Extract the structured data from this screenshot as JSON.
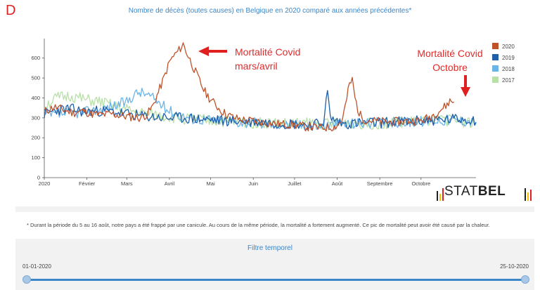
{
  "panel_letter": "D",
  "chart_data": {
    "type": "line",
    "title": "Nombre de décès (toutes causes) en Belgique en 2020 comparé aux années précédentes*",
    "xlabel": "",
    "ylabel": "",
    "ylim": [
      0,
      680
    ],
    "yticks": [
      0,
      100,
      200,
      300,
      400,
      500,
      600
    ],
    "x_start": "2020-01-01",
    "x_end": "2020-12-31",
    "x_tick_labels": [
      {
        "label": "2020",
        "date": "2020-01-01"
      },
      {
        "label": "Février",
        "date": "2020-02-01"
      },
      {
        "label": "Mars",
        "date": "2020-03-01"
      },
      {
        "label": "Avril",
        "date": "2020-04-01"
      },
      {
        "label": "Mai",
        "date": "2020-05-01"
      },
      {
        "label": "Juin",
        "date": "2020-06-01"
      },
      {
        "label": "Juillet",
        "date": "2020-07-01"
      },
      {
        "label": "Août",
        "date": "2020-08-01"
      },
      {
        "label": "Septembre",
        "date": "2020-09-01"
      },
      {
        "label": "Octobre",
        "date": "2020-10-01"
      }
    ],
    "grid": false,
    "legend_position": "right",
    "series": [
      {
        "name": "2020",
        "color": "#c0522a",
        "points": [
          [
            "2020-01-01",
            330
          ],
          [
            "2020-01-08",
            355
          ],
          [
            "2020-01-15",
            340
          ],
          [
            "2020-01-22",
            325
          ],
          [
            "2020-01-29",
            335
          ],
          [
            "2020-02-05",
            320
          ],
          [
            "2020-02-12",
            315
          ],
          [
            "2020-02-19",
            320
          ],
          [
            "2020-02-26",
            310
          ],
          [
            "2020-03-04",
            305
          ],
          [
            "2020-03-11",
            300
          ],
          [
            "2020-03-16",
            320
          ],
          [
            "2020-03-20",
            360
          ],
          [
            "2020-03-24",
            430
          ],
          [
            "2020-03-28",
            500
          ],
          [
            "2020-04-01",
            580
          ],
          [
            "2020-04-04",
            610
          ],
          [
            "2020-04-08",
            640
          ],
          [
            "2020-04-11",
            670
          ],
          [
            "2020-04-14",
            620
          ],
          [
            "2020-04-18",
            560
          ],
          [
            "2020-04-22",
            500
          ],
          [
            "2020-04-26",
            440
          ],
          [
            "2020-04-30",
            400
          ],
          [
            "2020-05-04",
            370
          ],
          [
            "2020-05-08",
            340
          ],
          [
            "2020-05-12",
            320
          ],
          [
            "2020-05-18",
            300
          ],
          [
            "2020-05-25",
            290
          ],
          [
            "2020-06-01",
            285
          ],
          [
            "2020-06-10",
            275
          ],
          [
            "2020-06-20",
            270
          ],
          [
            "2020-06-30",
            265
          ],
          [
            "2020-07-10",
            255
          ],
          [
            "2020-07-20",
            250
          ],
          [
            "2020-07-30",
            255
          ],
          [
            "2020-08-04",
            280
          ],
          [
            "2020-08-07",
            360
          ],
          [
            "2020-08-10",
            470
          ],
          [
            "2020-08-12",
            490
          ],
          [
            "2020-08-14",
            400
          ],
          [
            "2020-08-17",
            320
          ],
          [
            "2020-08-21",
            290
          ],
          [
            "2020-08-28",
            285
          ],
          [
            "2020-09-05",
            280
          ],
          [
            "2020-09-15",
            280
          ],
          [
            "2020-09-25",
            285
          ],
          [
            "2020-10-01",
            285
          ],
          [
            "2020-10-06",
            300
          ],
          [
            "2020-10-11",
            320
          ],
          [
            "2020-10-15",
            340
          ],
          [
            "2020-10-19",
            360
          ],
          [
            "2020-10-22",
            385
          ],
          [
            "2020-10-25",
            380
          ]
        ]
      },
      {
        "name": "2019",
        "color": "#1f5fa8",
        "points": [
          [
            "2020-01-01",
            320
          ],
          [
            "2020-01-10",
            340
          ],
          [
            "2020-01-20",
            345
          ],
          [
            "2020-01-31",
            330
          ],
          [
            "2020-02-10",
            335
          ],
          [
            "2020-02-20",
            330
          ],
          [
            "2020-03-01",
            320
          ],
          [
            "2020-03-10",
            310
          ],
          [
            "2020-03-20",
            305
          ],
          [
            "2020-03-31",
            300
          ],
          [
            "2020-04-10",
            300
          ],
          [
            "2020-04-20",
            295
          ],
          [
            "2020-05-01",
            290
          ],
          [
            "2020-05-15",
            285
          ],
          [
            "2020-06-01",
            280
          ],
          [
            "2020-06-15",
            275
          ],
          [
            "2020-07-01",
            270
          ],
          [
            "2020-07-15",
            265
          ],
          [
            "2020-07-22",
            280
          ],
          [
            "2020-07-25",
            430
          ],
          [
            "2020-07-27",
            300
          ],
          [
            "2020-08-05",
            270
          ],
          [
            "2020-08-20",
            275
          ],
          [
            "2020-09-01",
            275
          ],
          [
            "2020-09-15",
            280
          ],
          [
            "2020-10-01",
            285
          ],
          [
            "2020-10-15",
            290
          ],
          [
            "2020-10-31",
            295
          ],
          [
            "2020-11-10",
            290
          ]
        ]
      },
      {
        "name": "2018",
        "color": "#6ab4e8",
        "points": [
          [
            "2020-01-01",
            310
          ],
          [
            "2020-01-15",
            320
          ],
          [
            "2020-01-31",
            330
          ],
          [
            "2020-02-10",
            340
          ],
          [
            "2020-02-20",
            360
          ],
          [
            "2020-03-01",
            380
          ],
          [
            "2020-03-05",
            410
          ],
          [
            "2020-03-10",
            430
          ],
          [
            "2020-03-15",
            420
          ],
          [
            "2020-03-22",
            390
          ],
          [
            "2020-03-31",
            340
          ],
          [
            "2020-04-10",
            310
          ],
          [
            "2020-04-20",
            295
          ],
          [
            "2020-05-01",
            290
          ],
          [
            "2020-05-20",
            280
          ],
          [
            "2020-06-10",
            270
          ],
          [
            "2020-07-01",
            265
          ],
          [
            "2020-07-20",
            260
          ],
          [
            "2020-08-05",
            270
          ],
          [
            "2020-08-20",
            275
          ],
          [
            "2020-09-05",
            275
          ],
          [
            "2020-09-20",
            280
          ],
          [
            "2020-10-05",
            285
          ],
          [
            "2020-10-20",
            290
          ],
          [
            "2020-11-05",
            285
          ],
          [
            "2020-11-10",
            280
          ]
        ]
      },
      {
        "name": "2017",
        "color": "#b8e0a8",
        "points": [
          [
            "2020-01-01",
            360
          ],
          [
            "2020-01-10",
            400
          ],
          [
            "2020-01-20",
            410
          ],
          [
            "2020-01-31",
            390
          ],
          [
            "2020-02-10",
            380
          ],
          [
            "2020-02-20",
            360
          ],
          [
            "2020-03-01",
            340
          ],
          [
            "2020-03-15",
            320
          ],
          [
            "2020-03-31",
            305
          ],
          [
            "2020-04-15",
            295
          ],
          [
            "2020-05-01",
            285
          ],
          [
            "2020-05-20",
            280
          ],
          [
            "2020-06-10",
            275
          ],
          [
            "2020-06-25",
            270
          ],
          [
            "2020-07-10",
            275
          ],
          [
            "2020-07-25",
            270
          ],
          [
            "2020-08-10",
            275
          ],
          [
            "2020-08-25",
            270
          ],
          [
            "2020-09-10",
            275
          ],
          [
            "2020-09-25",
            280
          ],
          [
            "2020-10-10",
            285
          ],
          [
            "2020-10-25",
            290
          ],
          [
            "2020-11-10",
            275
          ]
        ]
      }
    ],
    "annotations": [
      {
        "lines": [
          "Mortalité Covid",
          "mars/avril"
        ],
        "arrow_target": [
          "2020-04-15",
          590
        ]
      },
      {
        "lines": [
          "Mortalité Covid",
          "Octobre"
        ],
        "arrow_target": [
          "2020-10-19",
          360
        ]
      }
    ]
  },
  "footnote": "* Durant la période du 5 au 16 août, notre pays a été frappé par une canicule. Au cours de la même période, la mortalité a fortement augmenté. Ce pic de mortalité peut avoir été causé par la chaleur.",
  "logo": {
    "left": "STAT",
    "right": "BEL"
  },
  "filter": {
    "title": "Filtre temporel",
    "start_label": "01-01-2020",
    "end_label": "25-10-2020",
    "slider_start": 0.0,
    "slider_end": 1.0
  }
}
